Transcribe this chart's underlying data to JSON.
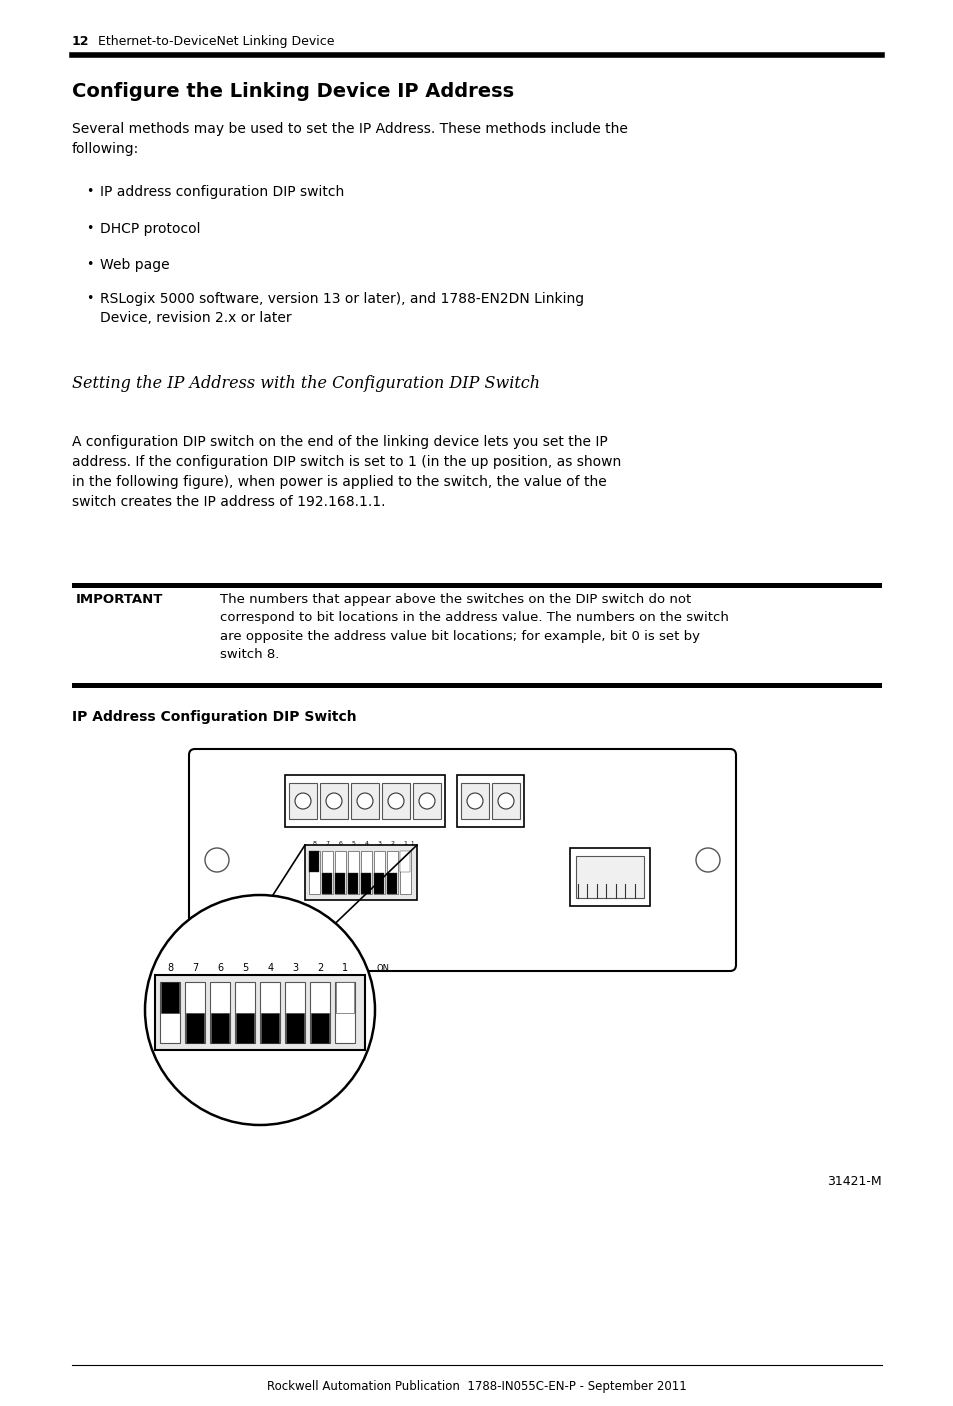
{
  "page_number": "12",
  "header_text": "Ethernet-to-DeviceNet Linking Device",
  "section_title": "Configure the Linking Device IP Address",
  "intro_text": "Several methods may be used to set the IP Address. These methods include the\nfollowing:",
  "bullet_items": [
    "IP address configuration DIP switch",
    "DHCP protocol",
    "Web page",
    "RSLogix 5000 software, version 13 or later), and 1788-EN2DN Linking\nDevice, revision 2.x or later"
  ],
  "subsection_title": "Setting the IP Address with the Configuration DIP Switch",
  "body_text": "A configuration DIP switch on the end of the linking device lets you set the IP\naddress. If the configuration DIP switch is set to 1 (in the up position, as shown\nin the following figure), when power is applied to the switch, the value of the\nswitch creates the IP address of 192.168.1.1.",
  "important_label": "IMPORTANT",
  "important_text": "The numbers that appear above the switches on the DIP switch do not\ncorrespond to bit locations in the address value. The numbers on the switch\nare opposite the address value bit locations; for example, bit 0 is set by\nswitch 8.",
  "figure_caption": "IP Address Configuration DIP Switch",
  "figure_number": "31421-M",
  "footer_text": "Rockwell Automation Publication  1788-IN055C-EN-P - September 2011",
  "bg_color": "#ffffff",
  "text_color": "#000000"
}
